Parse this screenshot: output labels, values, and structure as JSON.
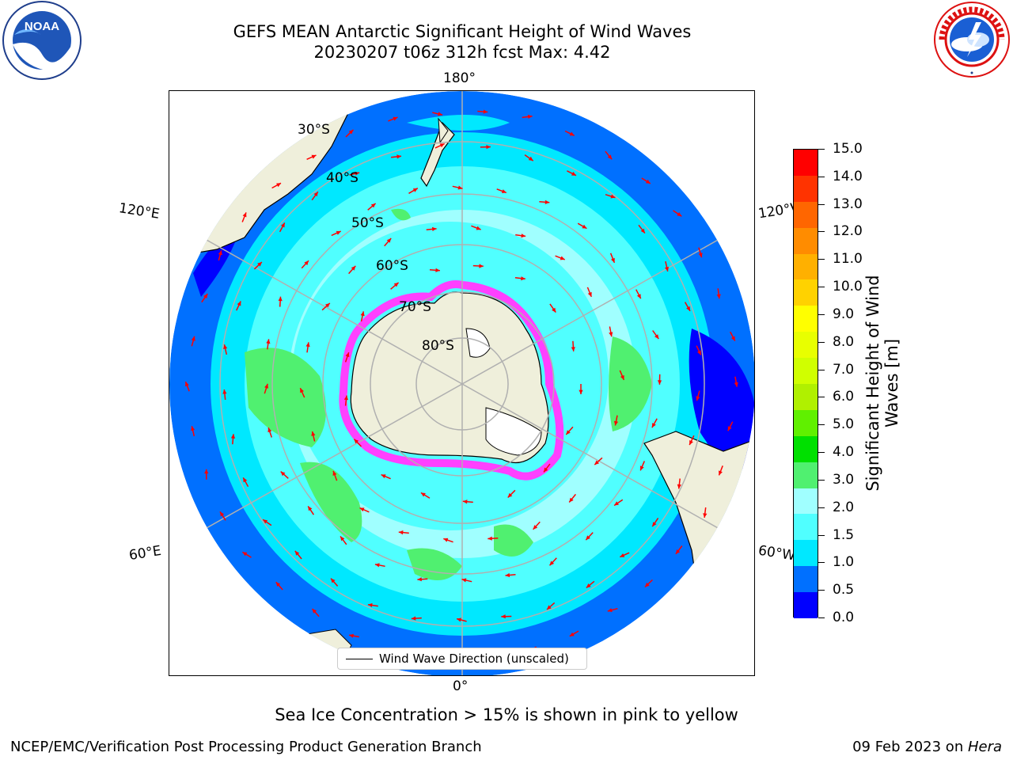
{
  "title": {
    "line1": "GEFS MEAN Antarctic Significant Height of Wind Waves",
    "line2": "20230207 t06z 312h fcst   Max: 4.42"
  },
  "longitude_labels": {
    "top": "180°",
    "bottom": "0°",
    "upper_left": "120°E",
    "upper_right": "120°W",
    "lower_left": "60°E",
    "lower_right": "60°W"
  },
  "latitude_labels": [
    "30°S",
    "40°S",
    "50°S",
    "60°S",
    "70°S",
    "80°S"
  ],
  "legend": {
    "label": "Wind Wave Direction (unscaled)"
  },
  "colorbar": {
    "title_line1": "Significant Height of Wind",
    "title_line2": "Waves [m]",
    "ticks": [
      "15.0",
      "14.0",
      "13.0",
      "12.0",
      "11.0",
      "10.0",
      "9.0",
      "8.0",
      "7.0",
      "6.0",
      "5.0",
      "4.0",
      "3.0",
      "2.0",
      "1.5",
      "1.0",
      "0.5",
      "0.0"
    ],
    "colors": [
      "#ff0000",
      "#ff3300",
      "#ff6600",
      "#ff8c00",
      "#ffb000",
      "#ffd200",
      "#ffff00",
      "#e8ff00",
      "#d0ff00",
      "#b0f000",
      "#60f000",
      "#00e000",
      "#50f070",
      "#a0ffff",
      "#50ffff",
      "#00e8ff",
      "#0070ff",
      "#0000ff"
    ]
  },
  "footnote": "Sea Ice Concentration > 15% is shown in pink to yellow",
  "credit_left": "NCEP/EMC/Verification Post Processing Product Generation Branch",
  "credit_right_date": "09 Feb 2023 on ",
  "credit_right_host": "Hera",
  "logos": {
    "noaa": "NOAA",
    "nws": "NATIONAL WEATHER SERVICE"
  },
  "map_colors": {
    "land": "#efefdb",
    "deep_blue": "#0000ff",
    "blue": "#0070ff",
    "cyan": "#00e8ff",
    "light_cyan": "#50ffff",
    "pale_cyan": "#a0ffff",
    "green": "#50f070",
    "ice": "#ff40ff",
    "arrow": "#ff0000",
    "grid": "#b0b0b0"
  }
}
